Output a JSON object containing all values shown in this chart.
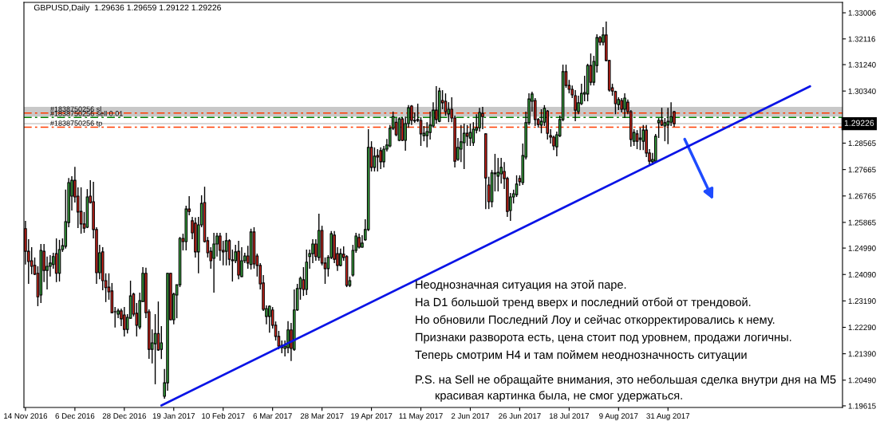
{
  "chart_data": {
    "type": "candlestick",
    "title": "GBPUSD,Daily  1.29636 1.29659 1.29122 1.29226",
    "categories": [
      "14 Nov 2016",
      null,
      null,
      null,
      null,
      null,
      null,
      null,
      null,
      null,
      null,
      null,
      null,
      null,
      null,
      null,
      "6 Dec 2016",
      null,
      null,
      null,
      null,
      null,
      null,
      null,
      null,
      null,
      null,
      null,
      null,
      null,
      null,
      null,
      "28 Dec 2016",
      null,
      null,
      null,
      null,
      null,
      null,
      null,
      null,
      null,
      null,
      null,
      null,
      null,
      null,
      null,
      "19 Jan 2017",
      null,
      null,
      null,
      null,
      null,
      null,
      null,
      null,
      null,
      null,
      null,
      null,
      null,
      null,
      null,
      "10 Feb 2017",
      null,
      null,
      null,
      null,
      null,
      null,
      null,
      null,
      null,
      null,
      null,
      null,
      null,
      null,
      null,
      "6 Mar 2017",
      null,
      null,
      null,
      null,
      null,
      null,
      null,
      null,
      null,
      null,
      null,
      null,
      null,
      null,
      null,
      "28 Mar 2017",
      null,
      null,
      null,
      null,
      null,
      null,
      null,
      null,
      null,
      null,
      null,
      null,
      null,
      null,
      null,
      "19 Apr 2017",
      null,
      null,
      null,
      null,
      null,
      null,
      null,
      null,
      null,
      null,
      null,
      null,
      null,
      null,
      null,
      "11 May 2017",
      null,
      null,
      null,
      null,
      null,
      null,
      null,
      null,
      null,
      null,
      null,
      null,
      null,
      null,
      null,
      "2 Jun 2017",
      null,
      null,
      null,
      null,
      null,
      null,
      null,
      null,
      null,
      null,
      null,
      null,
      null,
      null,
      null,
      "26 Jun 2017",
      null,
      null,
      null,
      null,
      null,
      null,
      null,
      null,
      null,
      null,
      null,
      null,
      null,
      null,
      null,
      "18 Jul 2017",
      null,
      null,
      null,
      null,
      null,
      null,
      null,
      null,
      null,
      null,
      null,
      null,
      null,
      null,
      null,
      "9 Aug 2017",
      null,
      null,
      null,
      null,
      null,
      null,
      null,
      null,
      null,
      null,
      null,
      null,
      null,
      null,
      null,
      "31 Aug 2017",
      null,
      null,
      null,
      null,
      null,
      null,
      null,
      null,
      null,
      null,
      null,
      null,
      null,
      null,
      null,
      null,
      null,
      null,
      null,
      null,
      null,
      null,
      null,
      null,
      null,
      null,
      null,
      null,
      null,
      null,
      null,
      null,
      null,
      null,
      null,
      null,
      null,
      null,
      null,
      null,
      null,
      null,
      null,
      null,
      null,
      null,
      null,
      null,
      null,
      null,
      null,
      null,
      null,
      null,
      null,
      null
    ],
    "ohlc": [
      [
        1.2565,
        1.2592,
        1.2443,
        1.2488
      ],
      [
        1.2488,
        1.2529,
        1.2377,
        1.2453
      ],
      [
        1.2456,
        1.2502,
        1.241,
        1.2437
      ],
      [
        1.244,
        1.2467,
        1.2407,
        1.241
      ],
      [
        1.2413,
        1.2437,
        1.2301,
        1.2333
      ],
      [
        1.2339,
        1.2513,
        1.2312,
        1.2491
      ],
      [
        1.2488,
        1.2513,
        1.2383,
        1.2423
      ],
      [
        1.2423,
        1.247,
        1.2358,
        1.2437
      ],
      [
        1.2437,
        1.2475,
        1.2402,
        1.2448
      ],
      [
        1.2443,
        1.2483,
        1.2429,
        1.247
      ],
      [
        1.248,
        1.2532,
        1.2383,
        1.2413
      ],
      [
        1.2413,
        1.2527,
        1.2385,
        1.2494
      ],
      [
        1.2494,
        1.2532,
        1.2486,
        1.2507
      ],
      [
        1.2505,
        1.2698,
        1.2497,
        1.2589
      ],
      [
        1.2586,
        1.2738,
        1.257,
        1.2722
      ],
      [
        1.2676,
        1.2744,
        1.2627,
        1.273
      ],
      [
        1.273,
        1.2776,
        1.2654,
        1.2673
      ],
      [
        1.2676,
        1.2706,
        1.2567,
        1.2622
      ],
      [
        1.2624,
        1.2706,
        1.2548,
        1.2581
      ],
      [
        1.2581,
        1.2622,
        1.2551,
        1.2567
      ],
      [
        1.257,
        1.27,
        1.2567,
        1.2673
      ],
      [
        1.2676,
        1.273,
        1.2651,
        1.2654
      ],
      [
        1.2657,
        1.2725,
        1.2532,
        1.2562
      ],
      [
        1.2562,
        1.257,
        1.2377,
        1.2415
      ],
      [
        1.2415,
        1.251,
        1.2393,
        1.2483
      ],
      [
        1.2486,
        1.2502,
        1.2355,
        1.2388
      ],
      [
        1.2388,
        1.2413,
        1.2315,
        1.2364
      ],
      [
        1.2366,
        1.2413,
        1.2323,
        1.235
      ],
      [
        1.2353,
        1.238,
        1.2277,
        1.2279
      ],
      [
        1.2282,
        1.2298,
        1.2228,
        1.2282
      ],
      [
        1.2274,
        1.2293,
        1.226,
        1.2285
      ],
      [
        1.2285,
        1.2293,
        1.2233,
        1.2258
      ],
      [
        1.2271,
        1.2298,
        1.2198,
        1.2222
      ],
      [
        1.2222,
        1.2274,
        1.2208,
        1.2263
      ],
      [
        1.226,
        1.2388,
        1.2259,
        1.2336
      ],
      [
        1.2342,
        1.2347,
        1.2266,
        1.2274
      ],
      [
        1.2277,
        1.2312,
        1.2198,
        1.2236
      ],
      [
        1.223,
        1.2347,
        1.2222,
        1.232
      ],
      [
        1.2317,
        1.2434,
        1.2315,
        1.2413
      ],
      [
        1.2413,
        1.2432,
        1.226,
        1.2279
      ],
      [
        1.2282,
        1.229,
        1.2122,
        1.2154
      ],
      [
        1.2154,
        1.2222,
        1.2106,
        1.2176
      ],
      [
        1.2173,
        1.2274,
        1.2035,
        1.2208
      ],
      [
        1.2208,
        1.2317,
        1.2149,
        1.2152
      ],
      [
        1.2154,
        1.2233,
        1.2121,
        1.2176
      ],
      [
        1.1994,
        1.2087,
        1.1986,
        1.204
      ],
      [
        1.204,
        1.2415,
        1.2013,
        1.2413
      ],
      [
        1.2413,
        1.2415,
        1.2253,
        1.2255
      ],
      [
        1.2255,
        1.2347,
        1.2239,
        1.2342
      ],
      [
        1.2339,
        1.2374,
        1.226,
        1.2374
      ],
      [
        1.2374,
        1.2537,
        1.2366,
        1.2532
      ],
      [
        1.2532,
        1.2548,
        1.2491,
        1.2521
      ],
      [
        1.2521,
        1.2643,
        1.2491,
        1.2632
      ],
      [
        1.2632,
        1.2676,
        1.2611,
        1.2624
      ],
      [
        1.2592,
        1.2605,
        1.2529,
        1.2551
      ],
      [
        1.2584,
        1.2603,
        1.2467,
        1.2486
      ],
      [
        1.2486,
        1.2605,
        1.2413,
        1.2578
      ],
      [
        1.2578,
        1.2679,
        1.257,
        1.2651
      ],
      [
        1.2654,
        1.2708,
        1.2518,
        1.2521
      ],
      [
        1.2524,
        1.2537,
        1.2467,
        1.2483
      ],
      [
        1.2488,
        1.2502,
        1.2429,
        1.2456
      ],
      [
        1.2464,
        1.2551,
        1.2347,
        1.2513
      ],
      [
        1.2513,
        1.2551,
        1.247,
        1.254
      ],
      [
        1.254,
        1.2551,
        1.2456,
        1.2491
      ],
      [
        1.2491,
        1.2524,
        1.244,
        1.2486
      ],
      [
        1.2488,
        1.2551,
        1.244,
        1.2524
      ],
      [
        1.2524,
        1.2529,
        1.244,
        1.2461
      ],
      [
        1.2459,
        1.2494,
        1.2385,
        1.2456
      ],
      [
        1.2456,
        1.251,
        1.2448,
        1.2486
      ],
      [
        1.2488,
        1.2524,
        1.2393,
        1.2407
      ],
      [
        1.2402,
        1.2502,
        1.24,
        1.2456
      ],
      [
        1.2456,
        1.2483,
        1.2448,
        1.2472
      ],
      [
        1.2472,
        1.2507,
        1.2429,
        1.2448
      ],
      [
        1.2443,
        1.2565,
        1.2426,
        1.2554
      ],
      [
        1.2554,
        1.257,
        1.2429,
        1.2445
      ],
      [
        1.2472,
        1.248,
        1.2402,
        1.244
      ],
      [
        1.244,
        1.2448,
        1.2358,
        1.2377
      ],
      [
        1.238,
        1.2407,
        1.2285,
        1.229
      ],
      [
        1.2266,
        1.2304,
        1.2239,
        1.2293
      ],
      [
        1.2266,
        1.2304,
        1.2211,
        1.2301
      ],
      [
        1.2288,
        1.2298,
        1.2225,
        1.2236
      ],
      [
        1.2236,
        1.2249,
        1.2184,
        1.2198
      ],
      [
        1.2198,
        1.2217,
        1.2154,
        1.2165
      ],
      [
        1.2168,
        1.2184,
        1.2141,
        1.216
      ],
      [
        1.2157,
        1.2184,
        1.213,
        1.2165
      ],
      [
        1.216,
        1.225,
        1.2141,
        1.222
      ],
      [
        1.222,
        1.2244,
        1.2114,
        1.2157
      ],
      [
        1.2154,
        1.2358,
        1.2149,
        1.2288
      ],
      [
        1.2288,
        1.2377,
        1.2285,
        1.2361
      ],
      [
        1.2361,
        1.2402,
        1.2323,
        1.2396
      ],
      [
        1.2391,
        1.2434,
        1.2336,
        1.2358
      ],
      [
        1.2358,
        1.2494,
        1.2339,
        1.2451
      ],
      [
        1.247,
        1.2494,
        1.2429,
        1.248
      ],
      [
        1.248,
        1.2529,
        1.2448,
        1.2513
      ],
      [
        1.2513,
        1.2529,
        1.2456,
        1.247
      ],
      [
        1.2467,
        1.2616,
        1.2456,
        1.2559
      ],
      [
        1.2559,
        1.2575,
        1.244,
        1.2448
      ],
      [
        1.2448,
        1.2467,
        1.2377,
        1.2429
      ],
      [
        1.2429,
        1.2475,
        1.2402,
        1.2467
      ],
      [
        1.2467,
        1.2557,
        1.2461,
        1.2548
      ],
      [
        1.2543,
        1.2557,
        1.2448,
        1.2461
      ],
      [
        1.248,
        1.2502,
        1.2421,
        1.244
      ],
      [
        1.244,
        1.2497,
        1.2437,
        1.248
      ],
      [
        1.2478,
        1.2505,
        1.2456,
        1.2467
      ],
      [
        1.247,
        1.2475,
        1.2366,
        1.2372
      ],
      [
        1.2372,
        1.2402,
        1.2366,
        1.2388
      ],
      [
        1.2407,
        1.251,
        1.2402,
        1.2491
      ],
      [
        1.2491,
        1.2551,
        1.2483,
        1.254
      ],
      [
        1.2535,
        1.2548,
        1.2497,
        1.2502
      ],
      [
        1.2502,
        1.2543,
        1.25,
        1.2516
      ],
      [
        1.2527,
        1.2597,
        1.2524,
        1.2562
      ],
      [
        1.2562,
        1.2904,
        1.2557,
        1.2842
      ],
      [
        1.2842,
        1.2863,
        1.276,
        1.2774
      ],
      [
        1.2774,
        1.2842,
        1.276,
        1.2812
      ],
      [
        1.2814,
        1.2836,
        1.276,
        1.2809
      ],
      [
        1.2831,
        1.2842,
        1.2768,
        1.2793
      ],
      [
        1.2793,
        1.2847,
        1.2774,
        1.2836
      ],
      [
        1.2836,
        1.2871,
        1.2828,
        1.285
      ],
      [
        1.2847,
        1.2918,
        1.2842,
        1.2907
      ],
      [
        1.2907,
        1.2964,
        1.2901,
        1.2947
      ],
      [
        1.2928,
        1.2942,
        1.288,
        1.2885
      ],
      [
        1.2866,
        1.2945,
        1.2863,
        1.2939
      ],
      [
        1.2939,
        1.2945,
        1.2863,
        1.2866
      ],
      [
        1.2866,
        1.2947,
        1.2831,
        1.2923
      ],
      [
        1.2923,
        1.2986,
        1.2909,
        1.2977
      ],
      [
        1.2983,
        1.2986,
        1.2918,
        1.2934
      ],
      [
        1.2934,
        1.2961,
        1.2926,
        1.2932
      ],
      [
        1.2937,
        1.2991,
        1.2928,
        1.2934
      ],
      [
        1.2934,
        1.2945,
        1.2847,
        1.2888
      ],
      [
        1.2882,
        1.2915,
        1.2863,
        1.289
      ],
      [
        1.2882,
        1.2928,
        1.2842,
        1.2896
      ],
      [
        1.2893,
        1.2964,
        1.2869,
        1.2918
      ],
      [
        1.2915,
        1.2996,
        1.2909,
        1.2969
      ],
      [
        1.2969,
        1.3051,
        1.2923,
        1.2937
      ],
      [
        1.2931,
        1.3045,
        1.2928,
        1.3034
      ],
      [
        1.3002,
        1.3037,
        1.2972,
        1.2994
      ],
      [
        1.2999,
        1.3026,
        1.295,
        1.2964
      ],
      [
        1.2956,
        1.2996,
        1.2928,
        1.2972
      ],
      [
        1.2972,
        1.3013,
        1.2928,
        1.2942
      ],
      [
        1.2942,
        1.295,
        1.2774,
        1.2795
      ],
      [
        1.2801,
        1.2874,
        1.2796,
        1.2842
      ],
      [
        1.2836,
        1.2918,
        1.2792,
        1.2861
      ],
      [
        1.2858,
        1.2923,
        1.2768,
        1.289
      ],
      [
        1.289,
        1.2918,
        1.2847,
        1.288
      ],
      [
        1.2874,
        1.2923,
        1.2847,
        1.2893
      ],
      [
        1.2858,
        1.2928,
        1.2847,
        1.2904
      ],
      [
        1.2901,
        1.2955,
        1.289,
        1.2909
      ],
      [
        1.2909,
        1.2977,
        1.2896,
        1.2961
      ],
      [
        1.2958,
        1.298,
        1.2904,
        1.2947
      ],
      [
        1.2888,
        1.289,
        1.2632,
        1.2738
      ],
      [
        1.2714,
        1.2742,
        1.2632,
        1.2657
      ],
      [
        1.2657,
        1.2765,
        1.2638,
        1.2755
      ],
      [
        1.2755,
        1.282,
        1.2692,
        1.2752
      ],
      [
        1.2744,
        1.2806,
        1.2692,
        1.2757
      ],
      [
        1.2752,
        1.2806,
        1.2719,
        1.2774
      ],
      [
        1.276,
        1.2792,
        1.27,
        1.2736
      ],
      [
        1.2736,
        1.2742,
        1.2605,
        1.2624
      ],
      [
        1.2627,
        1.2687,
        1.2592,
        1.2673
      ],
      [
        1.2673,
        1.2698,
        1.2651,
        1.2684
      ],
      [
        1.2681,
        1.2747,
        1.2673,
        1.2717
      ],
      [
        1.2736,
        1.2747,
        1.2711,
        1.2725
      ],
      [
        1.2722,
        1.2855,
        1.2714,
        1.2814
      ],
      [
        1.2809,
        1.2964,
        1.2801,
        1.2926
      ],
      [
        1.2926,
        1.3026,
        1.2918,
        1.3007
      ],
      [
        1.2999,
        1.3032,
        1.2964,
        1.3024
      ],
      [
        1.3002,
        1.301,
        1.2915,
        1.2937
      ],
      [
        1.2937,
        1.2942,
        1.2909,
        1.292
      ],
      [
        1.2918,
        1.2972,
        1.289,
        1.2931
      ],
      [
        1.2928,
        1.2986,
        1.2915,
        1.2975
      ],
      [
        1.2966,
        1.2969,
        1.2869,
        1.289
      ],
      [
        1.2882,
        1.2904,
        1.2855,
        1.2877
      ],
      [
        1.2877,
        1.2882,
        1.2833,
        1.2847
      ],
      [
        1.2844,
        1.2896,
        1.2812,
        1.2885
      ],
      [
        1.2882,
        1.295,
        1.2877,
        1.2937
      ],
      [
        1.2937,
        1.3124,
        1.2931,
        1.31
      ],
      [
        1.31,
        1.3124,
        1.3045,
        1.3053
      ],
      [
        1.3053,
        1.3072,
        1.3026,
        1.304
      ],
      [
        1.304,
        1.3053,
        1.301,
        1.3021
      ],
      [
        1.3018,
        1.3037,
        1.2931,
        1.2969
      ],
      [
        1.2964,
        1.3018,
        1.2955,
        1.2994
      ],
      [
        1.2991,
        1.3059,
        1.2986,
        1.3026
      ],
      [
        1.3024,
        1.3086,
        1.2999,
        1.3029
      ],
      [
        1.3024,
        1.3127,
        1.2999,
        1.3121
      ],
      [
        1.3121,
        1.3162,
        1.3053,
        1.3064
      ],
      [
        1.3064,
        1.3154,
        1.3053,
        1.3135
      ],
      [
        1.3121,
        1.3227,
        1.3097,
        1.3216
      ],
      [
        1.3216,
        1.3222,
        1.3189,
        1.32
      ],
      [
        1.32,
        1.3252,
        1.3189,
        1.3225
      ],
      [
        1.3225,
        1.3271,
        1.3135,
        1.3138
      ],
      [
        1.3138,
        1.314,
        1.3032,
        1.3037
      ],
      [
        1.3045,
        1.3059,
        1.3018,
        1.3034
      ],
      [
        1.3032,
        1.3035,
        1.2955,
        1.2991
      ],
      [
        1.2988,
        1.3013,
        1.2969,
        1.3005
      ],
      [
        1.3002,
        1.301,
        1.2961,
        1.2972
      ],
      [
        1.2972,
        1.3026,
        1.2942,
        1.301
      ],
      [
        1.2996,
        1.3005,
        1.2955,
        1.2964
      ],
      [
        1.2964,
        1.2969,
        1.2844,
        1.2869
      ],
      [
        1.2863,
        1.2904,
        1.2847,
        1.2893
      ],
      [
        1.2888,
        1.2901,
        1.2836,
        1.2863
      ],
      [
        1.2869,
        1.2909,
        1.2833,
        1.2874
      ],
      [
        1.2863,
        1.2918,
        1.2833,
        1.2901
      ],
      [
        1.2901,
        1.2918,
        1.2809,
        1.2823
      ],
      [
        1.2823,
        1.2836,
        1.2779,
        1.2795
      ],
      [
        1.2793,
        1.2823,
        1.2782,
        1.2801
      ],
      [
        1.2795,
        1.2888,
        1.2792,
        1.288
      ],
      [
        1.2926,
        1.2942,
        1.2874,
        1.2934
      ],
      [
        1.2934,
        1.2977,
        1.2915,
        1.2918
      ],
      [
        1.2915,
        1.2942,
        1.2863,
        1.2926
      ],
      [
        1.2918,
        1.2977,
        1.2853,
        1.2931
      ],
      [
        1.2928,
        1.2996,
        1.2915,
        1.2947
      ],
      [
        1.29636,
        1.29659,
        1.29122,
        1.29226
      ],
      null,
      null,
      null,
      null,
      null,
      null,
      null,
      null,
      null,
      null,
      null,
      null,
      null,
      null,
      null,
      null,
      null,
      null,
      null,
      null,
      null,
      null,
      null,
      null,
      null,
      null,
      null,
      null,
      null,
      null,
      null,
      null,
      null,
      null,
      null,
      null,
      null,
      null,
      null,
      null,
      null,
      null,
      null,
      null,
      null,
      null,
      null,
      null,
      null,
      null,
      null,
      null,
      null,
      null
    ],
    "series": [
      {
        "type": "line",
        "color": "#0a14e6",
        "values": [
          null,
          null,
          null,
          null,
          null,
          null,
          null,
          null,
          null,
          null,
          null,
          null,
          null,
          null,
          null,
          null,
          null,
          null,
          null,
          null,
          null,
          null,
          null,
          null,
          null,
          null,
          null,
          null,
          null,
          null,
          null,
          null,
          null,
          null,
          null,
          null,
          null,
          null,
          null,
          null,
          null,
          null,
          null,
          null,
          1.1963,
          null,
          null,
          null,
          null,
          null,
          null,
          null,
          null,
          null,
          null,
          null,
          null,
          null,
          null,
          null,
          null,
          null,
          null,
          null,
          null,
          null,
          null,
          null,
          null,
          null,
          null,
          null,
          null,
          null,
          null,
          null,
          null,
          null,
          null,
          null,
          null,
          null,
          null,
          null,
          null,
          null,
          null,
          null,
          null,
          null,
          null,
          null,
          null,
          null,
          null,
          null,
          null,
          null,
          null,
          null,
          null,
          null,
          null,
          null,
          null,
          null,
          null,
          null,
          null,
          null,
          null,
          null,
          null,
          null,
          null,
          null,
          null,
          null,
          null,
          null,
          null,
          null,
          null,
          null,
          null,
          null,
          null,
          null,
          null,
          null,
          null,
          null,
          null,
          null,
          null,
          null,
          null,
          null,
          null,
          null,
          null,
          null,
          null,
          null,
          null,
          null,
          null,
          null,
          null,
          null,
          null,
          null,
          null,
          null,
          null,
          null,
          null,
          null,
          null,
          null,
          null,
          null,
          null,
          null,
          null,
          null,
          null,
          null,
          null,
          null,
          null,
          null,
          null,
          null,
          null,
          null,
          null,
          null,
          null,
          null,
          null,
          null,
          null,
          null,
          null,
          null,
          null,
          null,
          null,
          null,
          null,
          null,
          null,
          null,
          null,
          null,
          null,
          null,
          null,
          null,
          null,
          null,
          null,
          null,
          null,
          null,
          null,
          null,
          null,
          null,
          null,
          null,
          null,
          null,
          null,
          null,
          null,
          null,
          null,
          null,
          null,
          null,
          null,
          null,
          null,
          null,
          null,
          null,
          null,
          null,
          null,
          null,
          null,
          null,
          null,
          null,
          null,
          null,
          null,
          null,
          null,
          null,
          null,
          null,
          null,
          null,
          null,
          null,
          null,
          null,
          null,
          null,
          null,
          null,
          1.305,
          null,
          null,
          null,
          null,
          null,
          null,
          null,
          null,
          null,
          null
        ]
      }
    ],
    "ylim": [
      1.1956,
      1.3336
    ],
    "yticks": [
      {
        "value": 1.33006,
        "label": "1.33006"
      },
      {
        "value": 1.32116,
        "label": "1.32116"
      },
      {
        "value": 1.3124,
        "label": "1.31240"
      },
      {
        "value": 1.3034,
        "label": "1.30340"
      },
      {
        "value": 1.28565,
        "label": "1.28565"
      },
      {
        "value": 1.27665,
        "label": "1.27665"
      },
      {
        "value": 1.26765,
        "label": "1.26765"
      },
      {
        "value": 1.25865,
        "label": "1.25865"
      },
      {
        "value": 1.2499,
        "label": "1.24990"
      },
      {
        "value": 1.2409,
        "label": "1.24090"
      },
      {
        "value": 1.2319,
        "label": "1.23190"
      },
      {
        "value": 1.2229,
        "label": "1.22290"
      },
      {
        "value": 1.2139,
        "label": "1.21390"
      },
      {
        "value": 1.2049,
        "label": "1.20490"
      },
      {
        "value": 1.19615,
        "label": "1.19615"
      }
    ],
    "ref_lines": [
      {
        "axis": "y",
        "value": 1.2959,
        "label": "#1838750256 sl",
        "color": "#ff3c00",
        "line_style": "dashed"
      },
      {
        "axis": "y",
        "value": 1.2944,
        "label": "#1838750256 sell 0.01",
        "color": "#008000",
        "line_style": "dashed"
      },
      {
        "axis": "y",
        "value": 1.2911,
        "label": "#1838750256 tp",
        "color": "#ff3c00",
        "line_style": "dashed"
      },
      {
        "axis": "y",
        "value": 1.29226,
        "label": "1.29226",
        "color": "#c0c0c0",
        "line_style": "solid"
      }
    ],
    "bands": [
      {
        "axis": "y",
        "from": 1.2947,
        "to": 1.298,
        "color": "#c8c8c8"
      }
    ],
    "annotations": [
      "Неоднозначная ситуация на этой паре.",
      "На D1 большой тренд вверх и последний отбой от трендовой.",
      "Но обновили Последний Лоу и сейчас откорректировались к нему.",
      "Признаки разворота есть, цена стоит под уровнем, продажи логичны.",
      "Теперь смотрим H4 и там поймем неоднозначность ситуации",
      "P.S. на Sell не обращайте внимания, это небольшая сделка внутри дня на M5",
      "красивая картинка была, не смог удержаться."
    ],
    "grid": false,
    "legend": false
  }
}
